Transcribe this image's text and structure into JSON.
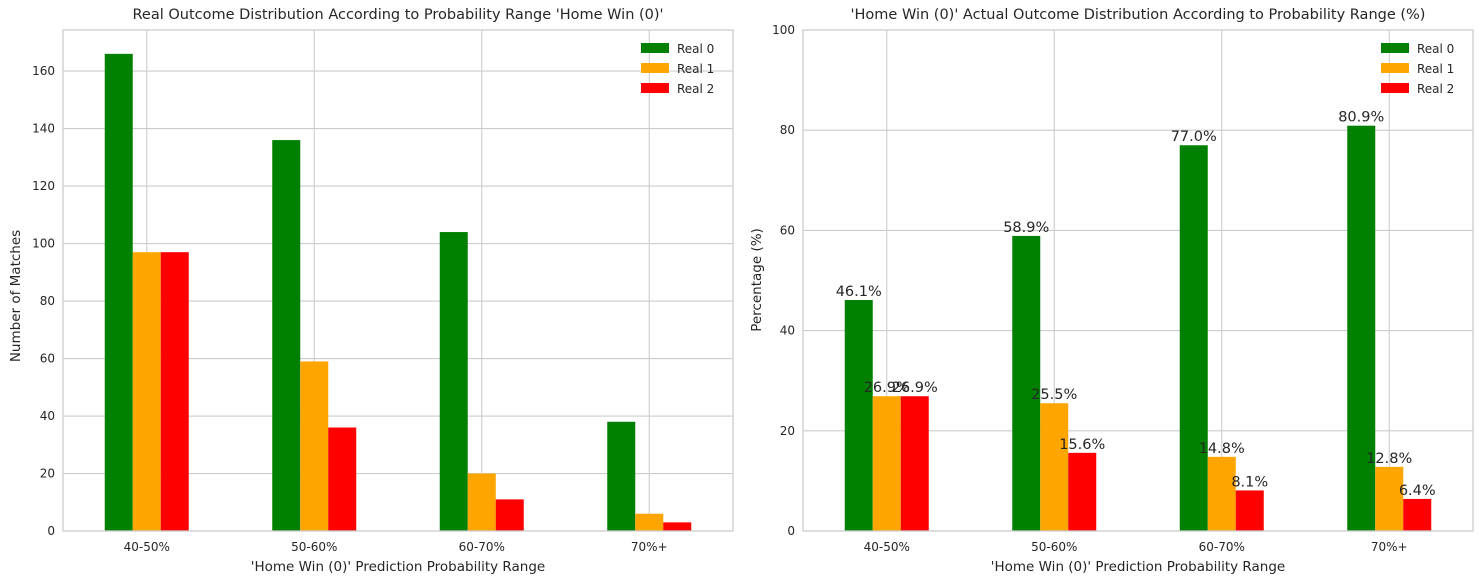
{
  "chart_data": [
    {
      "type": "bar",
      "title": "Real Outcome Distribution According to Probability Range 'Home Win (0)'",
      "xlabel": "'Home Win (0)' Prediction Probability Range",
      "ylabel": "Number of Matches",
      "categories": [
        "40-50%",
        "50-60%",
        "60-70%",
        "70%+"
      ],
      "series": [
        {
          "name": "Real 0",
          "color": "#008000",
          "values": [
            166,
            136,
            104,
            38
          ]
        },
        {
          "name": "Real 1",
          "color": "#ffa500",
          "values": [
            97,
            59,
            20,
            6
          ]
        },
        {
          "name": "Real 2",
          "color": "#ff0000",
          "values": [
            97,
            36,
            11,
            3
          ]
        }
      ],
      "ylim": [
        0,
        174.3
      ],
      "yticks": [
        0,
        20,
        40,
        60,
        80,
        100,
        120,
        140,
        160
      ],
      "grid": true,
      "legend": "top-right",
      "show_value_labels": false
    },
    {
      "type": "bar",
      "title": "'Home Win (0)' Actual Outcome Distribution According to Probability Range (%)",
      "xlabel": "'Home Win (0)' Prediction Probability Range",
      "ylabel": "Percentage (%)",
      "categories": [
        "40-50%",
        "50-60%",
        "60-70%",
        "70%+"
      ],
      "series": [
        {
          "name": "Real 0",
          "color": "#008000",
          "values": [
            46.1,
            58.9,
            77.0,
            80.9
          ],
          "labels": [
            "46.1%",
            "58.9%",
            "77.0%",
            "80.9%"
          ]
        },
        {
          "name": "Real 1",
          "color": "#ffa500",
          "values": [
            26.9,
            25.5,
            14.8,
            12.8
          ],
          "labels": [
            "26.9%",
            "25.5%",
            "14.8%",
            "12.8%"
          ]
        },
        {
          "name": "Real 2",
          "color": "#ff0000",
          "values": [
            26.9,
            15.6,
            8.1,
            6.4
          ],
          "labels": [
            "26.9%",
            "15.6%",
            "8.1%",
            "6.4%"
          ]
        }
      ],
      "ylim": [
        0,
        100
      ],
      "yticks": [
        0,
        20,
        40,
        60,
        80,
        100
      ],
      "grid": true,
      "legend": "top-right",
      "show_value_labels": true
    }
  ]
}
